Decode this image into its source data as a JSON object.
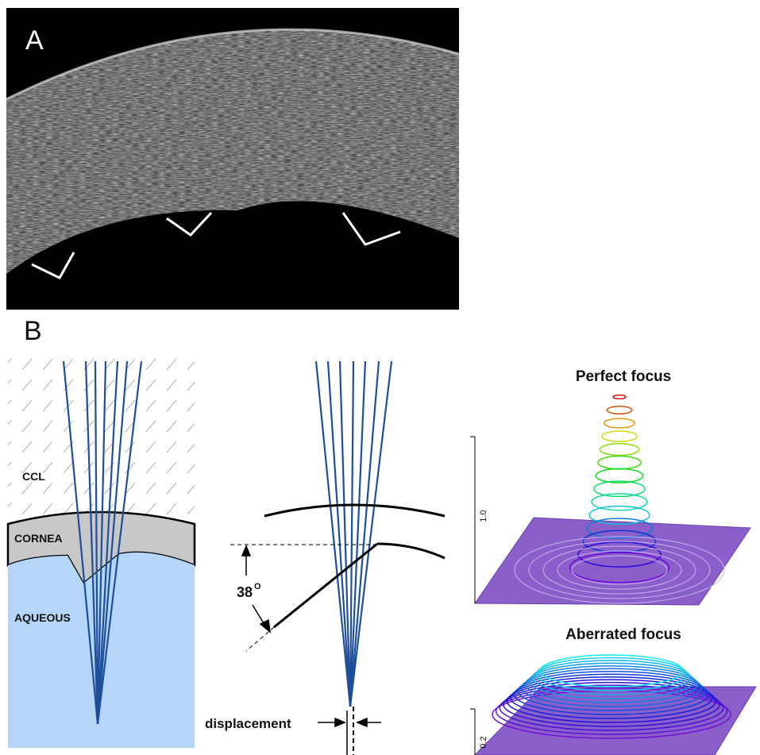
{
  "panel_a": {
    "label": "A"
  },
  "panel_b": {
    "label": "B",
    "left": {
      "ccl": "CCL",
      "cornea": "CORNEA",
      "aqueous": "AQUEOUS"
    },
    "middle": {
      "angle": "38",
      "angle_unit": "O",
      "displacement": "displacement"
    },
    "right": {
      "top_title": "Perfect focus",
      "top_axis": "1.0",
      "bottom_title": "Aberrated focus",
      "bottom_axis": "0.2"
    }
  }
}
